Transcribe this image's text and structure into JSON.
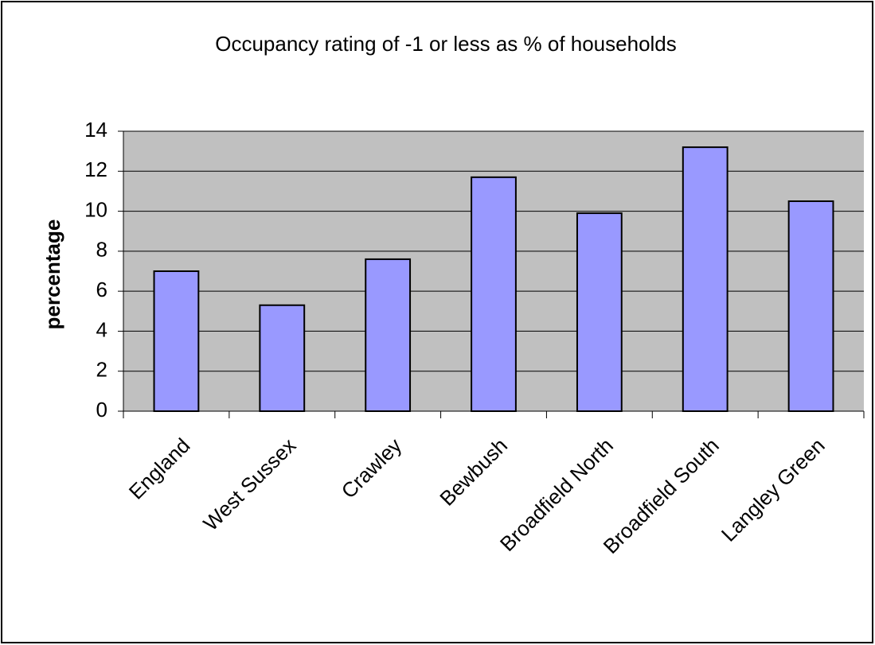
{
  "chart_data": {
    "type": "bar",
    "title": "Occupancy rating of -1 or less as % of households",
    "y_label": "percentage",
    "categories": [
      "England",
      "West Sussex",
      "Crawley",
      "Bewbush",
      "Broadfield North",
      "Broadfield South",
      "Langley Green"
    ],
    "values": [
      7.0,
      5.3,
      7.6,
      11.7,
      9.9,
      13.2,
      10.5
    ],
    "color": "#9999ff",
    "ylim": [
      0,
      14
    ],
    "yticks": [
      0,
      2,
      4,
      6,
      8,
      10,
      12,
      14
    ],
    "grid": true
  }
}
